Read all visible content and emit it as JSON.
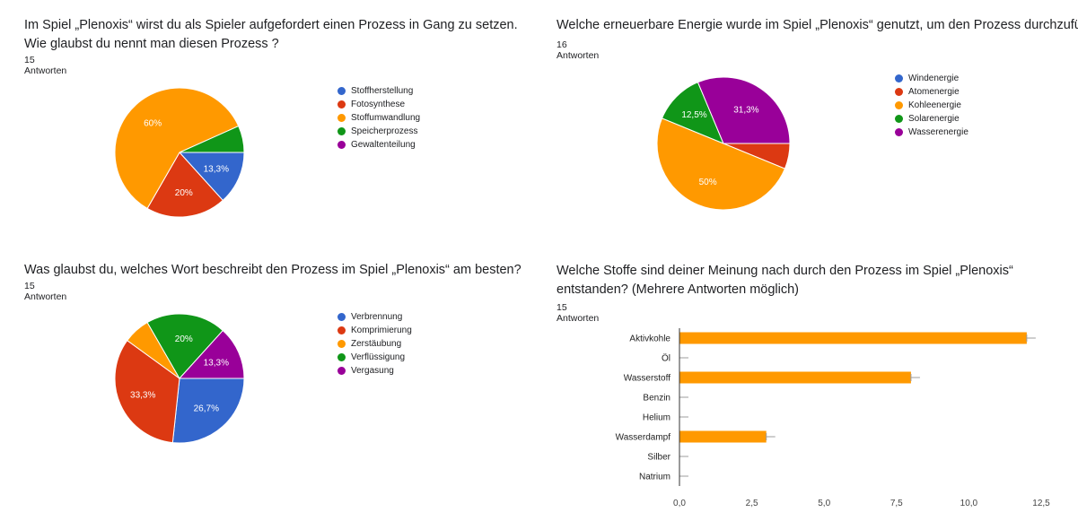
{
  "panels": [
    {
      "title": "Im Spiel „Plenoxis“ wirst du als Spieler aufgefordert einen Prozess in Gang zu setzen. Wie glaubst du nennt man diesen Prozess ?",
      "responses": "15 Antworten"
    },
    {
      "title": "Welche erneuerbare Energie wurde im Spiel „Plenoxis“ genutzt, um den Prozess durchzuführen?",
      "responses": "16 Antworten"
    },
    {
      "title": "Was glaubst du, welches Wort beschreibt den Prozess im Spiel „Plenoxis“ am besten?",
      "responses": "15 Antworten"
    },
    {
      "title": "Welche Stoffe sind deiner Meinung nach durch den Prozess im Spiel „Plenoxis“ entstanden? (Mehrere Antworten möglich)",
      "responses": "15 Antworten"
    }
  ],
  "chart_data": [
    {
      "type": "pie",
      "categories": [
        "Stoffherstellung",
        "Fotosynthese",
        "Stoffumwandlung",
        "Speicherprozess",
        "Gewaltenteilung"
      ],
      "values": [
        13.3,
        20,
        60,
        6.7,
        0
      ],
      "labels": [
        "13,3%",
        "20%",
        "60%",
        "",
        ""
      ],
      "colors": [
        "#3366cc",
        "#dc3912",
        "#ff9900",
        "#109618",
        "#990099"
      ],
      "legend": "right"
    },
    {
      "type": "pie",
      "categories": [
        "Windenergie",
        "Atomenergie",
        "Kohleenergie",
        "Solarenergie",
        "Wasserenergie"
      ],
      "values": [
        0,
        6.2,
        50,
        12.5,
        31.3
      ],
      "labels": [
        "",
        "",
        "50%",
        "12,5%",
        "31,3%"
      ],
      "colors": [
        "#3366cc",
        "#dc3912",
        "#ff9900",
        "#109618",
        "#990099"
      ],
      "legend": "right"
    },
    {
      "type": "pie",
      "categories": [
        "Verbrennung",
        "Komprimierung",
        "Zerstäubung",
        "Verflüssigung",
        "Vergasung"
      ],
      "values": [
        26.7,
        33.3,
        6.7,
        20,
        13.3
      ],
      "labels": [
        "26,7%",
        "33,3%",
        "",
        "20%",
        "13,3%"
      ],
      "colors": [
        "#3366cc",
        "#dc3912",
        "#ff9900",
        "#109618",
        "#990099"
      ],
      "legend": "right"
    },
    {
      "type": "bar",
      "orientation": "horizontal",
      "categories": [
        "Aktivkohle",
        "Öl",
        "Wasserstoff",
        "Benzin",
        "Helium",
        "Wasserdampf",
        "Silber",
        "Natrium"
      ],
      "values": [
        12,
        0,
        8,
        0,
        0,
        3,
        0,
        0
      ],
      "color": "#ff9900",
      "xlim": [
        0,
        12.5
      ],
      "xticks": [
        "0,0",
        "2,5",
        "5,0",
        "7,5",
        "10,0",
        "12,5"
      ],
      "grid": false
    }
  ]
}
